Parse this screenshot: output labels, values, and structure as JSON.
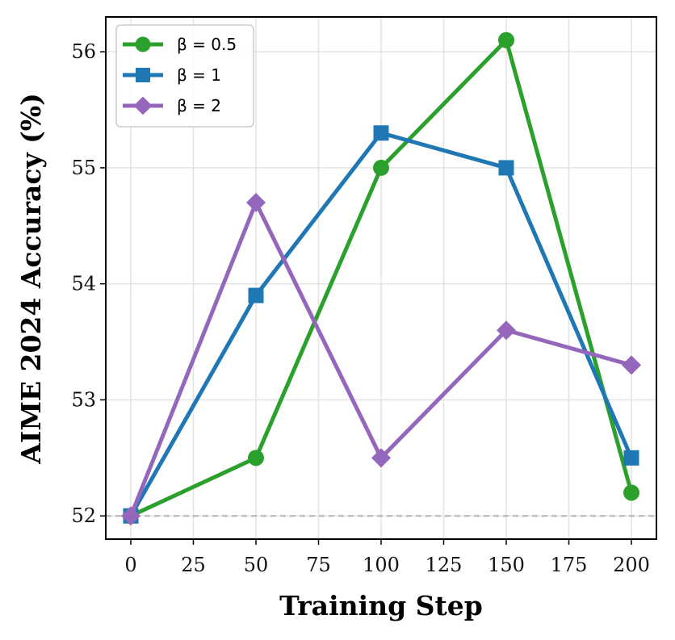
{
  "chart_data": {
    "type": "line",
    "xlabel": "Training Step",
    "ylabel": "AIME 2024 Accuracy (%)",
    "x": [
      0,
      50,
      100,
      150,
      200
    ],
    "xlim": [
      -10,
      210
    ],
    "ylim": [
      51.8,
      56.3
    ],
    "xticks": [
      0,
      25,
      50,
      75,
      100,
      125,
      150,
      175,
      200
    ],
    "yticks": [
      52,
      53,
      54,
      55,
      56
    ],
    "grid": true,
    "legend_position": "top-left",
    "reference_line": {
      "y": 52,
      "style": "dashed",
      "color": "#b0b0b0"
    },
    "series": [
      {
        "name": "β = 0.5",
        "values": [
          52.0,
          52.5,
          55.0,
          56.1,
          52.2
        ],
        "color": "#2ca02c",
        "marker": "circle"
      },
      {
        "name": "β = 1",
        "values": [
          52.0,
          53.9,
          55.3,
          55.0,
          52.5
        ],
        "color": "#1f77b4",
        "marker": "square"
      },
      {
        "name": "β = 2",
        "values": [
          52.0,
          54.7,
          52.5,
          53.6,
          53.3
        ],
        "color": "#9467bd",
        "marker": "diamond"
      }
    ]
  }
}
